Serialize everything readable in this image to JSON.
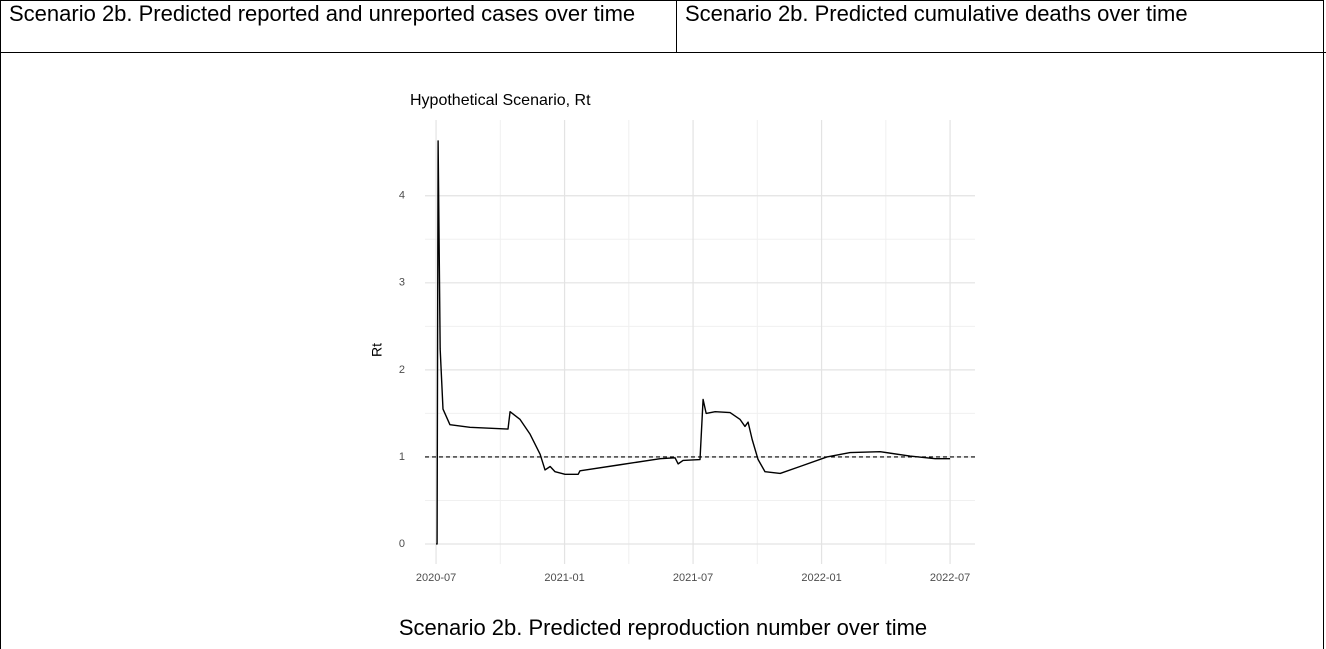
{
  "table": {
    "header": [
      "Scenario 2b. Predicted reported and unreported cases over time",
      "Scenario 2b. Predicted cumulative deaths over time"
    ],
    "caption": "Scenario 2b. Predicted reproduction number over time"
  },
  "chart_data": {
    "type": "line",
    "title": "Hypothetical Scenario, Rt",
    "y_label": "Rt",
    "x": [
      2020.5,
      2020.504,
      2020.508,
      2020.516,
      2020.527,
      2020.554,
      2020.632,
      2020.78,
      2020.788,
      2020.827,
      2020.866,
      2020.905,
      2020.924,
      2020.944,
      2020.963,
      2021.002,
      2021.053,
      2021.06,
      2021.216,
      2021.372,
      2021.43,
      2021.442,
      2021.461,
      2021.527,
      2021.539,
      2021.551,
      2021.586,
      2021.644,
      2021.683,
      2021.702,
      2021.714,
      2021.73,
      2021.753,
      2021.78,
      2021.839,
      2021.916,
      2022.021,
      2022.111,
      2022.228,
      2022.344,
      2022.442,
      2022.5
    ],
    "series": [
      {
        "color": "#000000",
        "values": [
          0,
          0,
          4.63,
          2.24,
          1.55,
          1.37,
          1.34,
          1.32,
          1.52,
          1.43,
          1.26,
          1.03,
          0.85,
          0.89,
          0.83,
          0.8,
          0.8,
          0.84,
          0.91,
          0.98,
          0.99,
          0.92,
          0.96,
          0.97,
          1.66,
          1.5,
          1.52,
          1.51,
          1.43,
          1.35,
          1.4,
          1.2,
          0.97,
          0.83,
          0.81,
          0.89,
          1.0,
          1.05,
          1.06,
          1.01,
          0.98,
          0.98
        ]
      }
    ],
    "hline": 1,
    "xlim": [
      2020.457,
      2022.597
    ],
    "ylim": [
      -0.23,
      4.87
    ],
    "xticks": [
      {
        "value": 2020.5,
        "label": "2020-07"
      },
      {
        "value": 2021.0,
        "label": "2021-01"
      },
      {
        "value": 2021.5,
        "label": "2021-07"
      },
      {
        "value": 2022.0,
        "label": "2022-01"
      },
      {
        "value": 2022.5,
        "label": "2022-07"
      }
    ],
    "yticks": [
      0,
      1,
      2,
      3,
      4
    ],
    "grid": true
  }
}
